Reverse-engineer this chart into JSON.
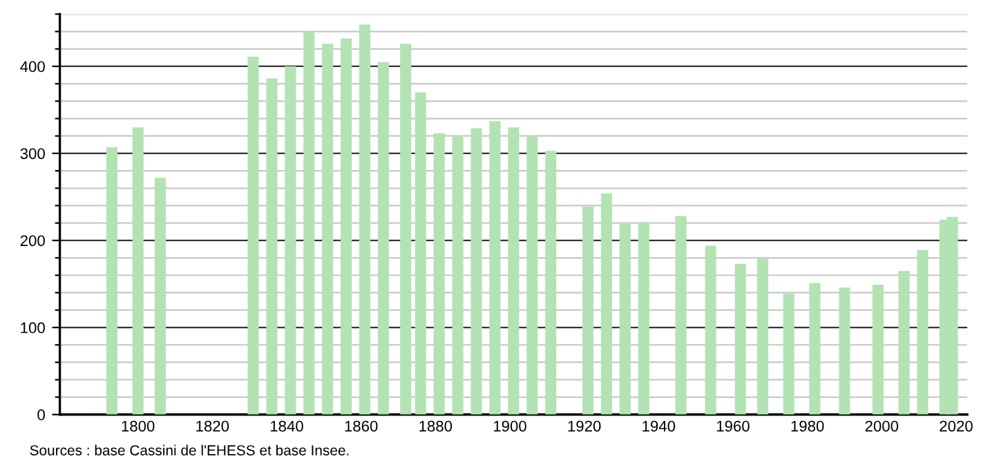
{
  "chart_data": {
    "type": "bar",
    "x": [
      1793,
      1800,
      1806,
      1831,
      1836,
      1841,
      1846,
      1851,
      1856,
      1861,
      1866,
      1872,
      1876,
      1881,
      1886,
      1891,
      1896,
      1901,
      1906,
      1911,
      1921,
      1926,
      1931,
      1936,
      1946,
      1954,
      1962,
      1968,
      1975,
      1982,
      1990,
      1999,
      2006,
      2011,
      2017,
      2019
    ],
    "values": [
      307,
      330,
      272,
      411,
      386,
      400,
      439,
      426,
      432,
      448,
      405,
      426,
      370,
      323,
      319,
      329,
      337,
      330,
      319,
      303,
      239,
      254,
      219,
      221,
      228,
      194,
      173,
      179,
      139,
      151,
      146,
      149,
      165,
      189,
      224,
      227
    ],
    "color": "#b3e3b3",
    "xlim": [
      1779,
      2023
    ],
    "xticks": [
      1800,
      1820,
      1840,
      1860,
      1880,
      1900,
      1920,
      1940,
      1960,
      1980,
      2000,
      2020
    ],
    "ylim": [
      0,
      460
    ],
    "yticks": [
      0,
      {
        "value": 20,
        "label": null
      },
      {
        "value": 40,
        "label": null
      },
      {
        "value": 60,
        "label": null
      },
      {
        "value": 80,
        "label": null
      },
      100,
      {
        "value": 120,
        "label": null
      },
      {
        "value": 140,
        "label": null
      },
      {
        "value": 160,
        "label": null
      },
      {
        "value": 180,
        "label": null
      },
      200,
      {
        "value": 220,
        "label": null
      },
      {
        "value": 240,
        "label": null
      },
      {
        "value": 260,
        "label": null
      },
      {
        "value": 280,
        "label": null
      },
      300,
      {
        "value": 320,
        "label": null
      },
      {
        "value": 340,
        "label": null
      },
      {
        "value": 360,
        "label": null
      },
      {
        "value": 380,
        "label": null
      },
      400,
      {
        "value": 420,
        "label": null
      },
      {
        "value": 440,
        "label": null
      },
      {
        "value": 460,
        "label": null
      }
    ],
    "grid": "y",
    "annotations": [
      "Sources : base Cassini de l'EHESS et base Insee."
    ]
  }
}
